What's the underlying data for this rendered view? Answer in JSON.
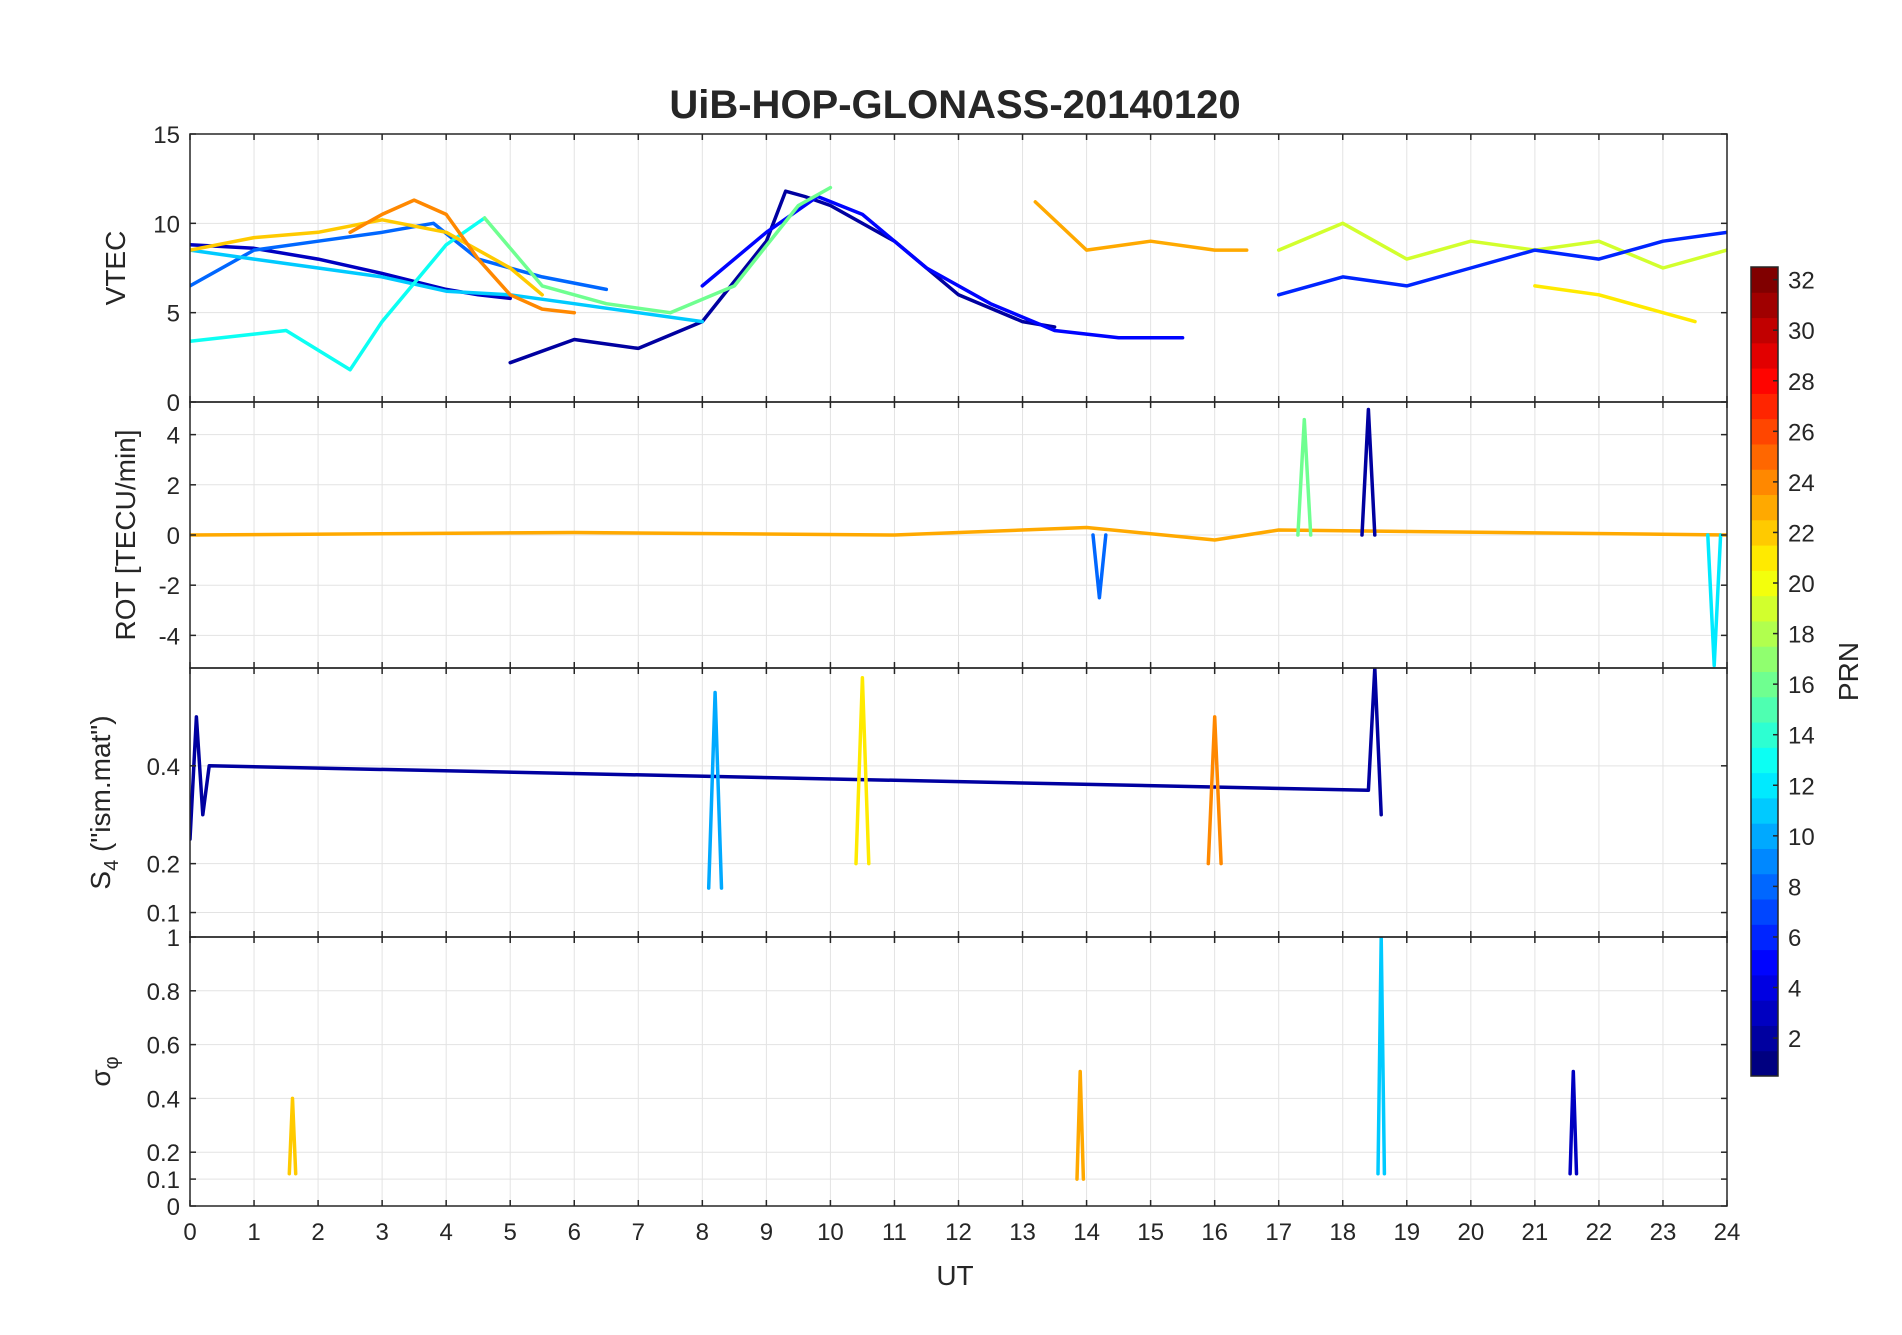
{
  "chart_data": {
    "type": "line",
    "title": "UiB-HOP-GLONASS-20140120",
    "xlabel": "UT",
    "xlim": [
      0,
      24
    ],
    "x_ticks": [
      "0",
      "1",
      "2",
      "3",
      "4",
      "5",
      "6",
      "7",
      "8",
      "9",
      "10",
      "11",
      "12",
      "13",
      "14",
      "15",
      "16",
      "17",
      "18",
      "19",
      "20",
      "21",
      "22",
      "23",
      "24"
    ],
    "grid": true,
    "colormap": "jet",
    "colorbar": {
      "label": "PRN",
      "range": [
        1,
        32
      ],
      "ticks": [
        "2",
        "4",
        "6",
        "8",
        "10",
        "12",
        "14",
        "16",
        "18",
        "20",
        "22",
        "24",
        "26",
        "28",
        "30",
        "32"
      ],
      "position": "right"
    },
    "panels": [
      {
        "ylabel": "VTEC",
        "ylim": [
          0,
          15
        ],
        "y_ticks": [
          "0",
          "5",
          "10",
          "15"
        ],
        "series": [
          {
            "prn": 3,
            "x": [
              0.0,
              1.0,
              2.0,
              3.0,
              4.0,
              4.5,
              5.0
            ],
            "y": [
              8.8,
              8.6,
              8.0,
              7.2,
              6.3,
              6.0,
              5.8
            ]
          },
          {
            "prn": 2,
            "x": [
              5.0,
              6.0,
              7.0,
              8.0,
              9.0,
              9.3,
              9.6,
              10.0,
              11.0,
              12.0,
              13.0,
              13.5
            ],
            "y": [
              2.2,
              3.5,
              3.0,
              4.5,
              9.0,
              11.8,
              11.5,
              11.0,
              9.0,
              6.0,
              4.5,
              4.2
            ]
          },
          {
            "prn": 5,
            "x": [
              8.0,
              9.0,
              9.8,
              10.5,
              11.5,
              12.5,
              13.5,
              14.5,
              15.5
            ],
            "y": [
              6.5,
              9.5,
              11.5,
              10.5,
              7.5,
              5.5,
              4.0,
              3.6,
              3.6
            ]
          },
          {
            "prn": 8,
            "x": [
              0.0,
              1.0,
              2.0,
              3.0,
              3.8,
              4.5,
              5.5,
              6.5
            ],
            "y": [
              6.5,
              8.5,
              9.0,
              9.5,
              10.0,
              8.0,
              7.0,
              6.3
            ]
          },
          {
            "prn": 11,
            "x": [
              0.0,
              1.0,
              2.0,
              3.0,
              4.0,
              5.0,
              6.0,
              7.0,
              8.0
            ],
            "y": [
              8.5,
              8.0,
              7.5,
              7.0,
              6.2,
              6.0,
              5.5,
              5.0,
              4.5
            ]
          },
          {
            "prn": 13,
            "x": [
              0.0,
              1.0,
              1.5,
              2.5,
              3.0,
              4.0,
              4.6
            ],
            "y": [
              3.4,
              3.8,
              4.0,
              1.8,
              4.5,
              8.8,
              10.3
            ]
          },
          {
            "prn": 16,
            "x": [
              4.6,
              5.5,
              6.5,
              7.5,
              8.5,
              9.5,
              10.0
            ],
            "y": [
              10.3,
              6.5,
              5.5,
              5.0,
              6.5,
              11.0,
              12.0
            ]
          },
          {
            "prn": 22,
            "x": [
              0.0,
              1.0,
              2.0,
              3.0,
              4.0,
              5.0,
              5.5
            ],
            "y": [
              8.5,
              9.2,
              9.5,
              10.2,
              9.5,
              7.5,
              6.0
            ]
          },
          {
            "prn": 24,
            "x": [
              2.5,
              3.0,
              3.5,
              4.0,
              4.5,
              5.0,
              5.5,
              6.0
            ],
            "y": [
              9.5,
              10.5,
              11.3,
              10.5,
              8.0,
              6.0,
              5.2,
              5.0
            ]
          },
          {
            "prn": 23,
            "x": [
              13.2,
              14.0,
              15.0,
              16.0,
              16.5
            ],
            "y": [
              11.2,
              8.5,
              9.0,
              8.5,
              8.5
            ]
          },
          {
            "prn": 19,
            "x": [
              17.0,
              18.0,
              19.0,
              20.0,
              21.0,
              22.0,
              23.0,
              24.0
            ],
            "y": [
              8.5,
              10.0,
              8.0,
              9.0,
              8.5,
              9.0,
              7.5,
              8.5
            ]
          },
          {
            "prn": 6,
            "x": [
              17.0,
              18.0,
              19.0,
              20.0,
              21.0,
              22.0,
              23.0,
              24.0
            ],
            "y": [
              6.0,
              7.0,
              6.5,
              7.5,
              8.5,
              8.0,
              9.0,
              9.5
            ]
          },
          {
            "prn": 21,
            "x": [
              21.0,
              22.0,
              23.0,
              23.5
            ],
            "y": [
              6.5,
              6.0,
              5.0,
              4.5
            ]
          }
        ]
      },
      {
        "ylabel": "ROT [TECU/min]",
        "ylim": [
          -5.3,
          5.3
        ],
        "y_ticks": [
          "-4",
          "-2",
          "0",
          "2",
          "4"
        ],
        "series": [
          {
            "prn": 23,
            "x": [
              0.0,
              6.0,
              11.0,
              14.0,
              16.0,
              17.0,
              24.0
            ],
            "y": [
              0.0,
              0.1,
              0.0,
              0.3,
              -0.2,
              0.2,
              0.0
            ]
          },
          {
            "prn": 8,
            "x": [
              14.1,
              14.2,
              14.3
            ],
            "y": [
              0.0,
              -2.5,
              0.0
            ]
          },
          {
            "prn": 2,
            "x": [
              18.3,
              18.4,
              18.5
            ],
            "y": [
              0.0,
              5.0,
              0.0
            ]
          },
          {
            "prn": 16,
            "x": [
              17.3,
              17.4,
              17.5
            ],
            "y": [
              0.0,
              4.6,
              0.0
            ]
          },
          {
            "prn": 12,
            "x": [
              23.7,
              23.8,
              23.9
            ],
            "y": [
              0.0,
              -5.2,
              0.0
            ]
          }
        ]
      },
      {
        "ylabel": "S_4 (\"ism.mat\")",
        "ylim": [
          0.05,
          0.6
        ],
        "y_ticks": [
          "0.1",
          "0.2",
          "0.4"
        ],
        "series": [
          {
            "prn": 2,
            "x": [
              0.0,
              0.1,
              0.2,
              0.3,
              18.4,
              18.5,
              18.6
            ],
            "y": [
              0.25,
              0.5,
              0.3,
              0.4,
              0.35,
              0.6,
              0.3
            ]
          },
          {
            "prn": 10,
            "x": [
              8.1,
              8.2,
              8.3
            ],
            "y": [
              0.15,
              0.55,
              0.15
            ]
          },
          {
            "prn": 21,
            "x": [
              10.4,
              10.5,
              10.6
            ],
            "y": [
              0.2,
              0.58,
              0.2
            ]
          },
          {
            "prn": 24,
            "x": [
              15.9,
              16.0,
              16.1
            ],
            "y": [
              0.2,
              0.5,
              0.2
            ]
          }
        ]
      },
      {
        "ylabel": "σ_φ",
        "ylim": [
          0,
          1
        ],
        "y_ticks": [
          "0",
          "0.1",
          "0.2",
          "0.4",
          "0.6",
          "0.8",
          "1"
        ],
        "series": [
          {
            "prn": 11,
            "x": [
              18.55,
              18.6,
              18.65
            ],
            "y": [
              0.12,
              1.0,
              0.12
            ]
          },
          {
            "prn": 23,
            "x": [
              13.85,
              13.9,
              13.95
            ],
            "y": [
              0.1,
              0.5,
              0.1
            ]
          },
          {
            "prn": 22,
            "x": [
              1.55,
              1.6,
              1.65
            ],
            "y": [
              0.12,
              0.4,
              0.12
            ]
          },
          {
            "prn": 3,
            "x": [
              21.55,
              21.6,
              21.65
            ],
            "y": [
              0.12,
              0.5,
              0.12
            ]
          }
        ]
      }
    ]
  }
}
